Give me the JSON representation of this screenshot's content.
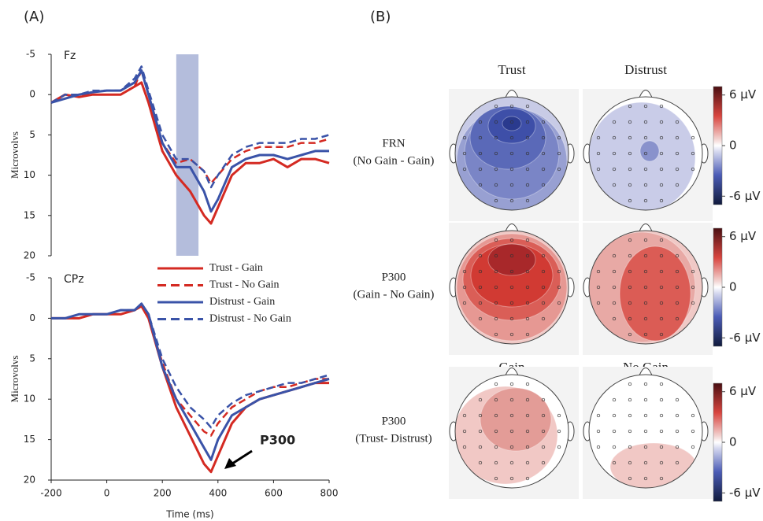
{
  "panel_labels": {
    "a": "(A)",
    "b": "(B)"
  },
  "chart_data": [
    {
      "type": "line",
      "annotation": "Fz",
      "y_label": "Microvolvs",
      "x": [
        -200,
        -150,
        -100,
        -50,
        0,
        50,
        100,
        125,
        150,
        200,
        250,
        300,
        350,
        375,
        400,
        450,
        500,
        550,
        600,
        650,
        700,
        750,
        800
      ],
      "xlim": [
        -200,
        800
      ],
      "ylim": [
        -5,
        20
      ],
      "y_inverted": true,
      "yticks": [
        -5,
        0,
        5,
        10,
        15,
        20
      ],
      "highlight_window": [
        250,
        330
      ],
      "series": [
        {
          "name": "Trust - Gain",
          "color": "#d42a22",
          "dash": false,
          "values": [
            1,
            0,
            0.3,
            0,
            0,
            0,
            -1,
            -1.5,
            1,
            7,
            10,
            12,
            15,
            16,
            14,
            10,
            8.5,
            8.5,
            8,
            9,
            8,
            8,
            8.5
          ]
        },
        {
          "name": "Trust - No Gain",
          "color": "#d42a22",
          "dash": true,
          "values": [
            1,
            0,
            0,
            0,
            0,
            0,
            -1,
            -3,
            0,
            6,
            8.5,
            8,
            9.5,
            11,
            10,
            8,
            7,
            6.5,
            6.5,
            6.5,
            6,
            6,
            5.5
          ]
        },
        {
          "name": "Distrust - Gain",
          "color": "#3a53a8",
          "dash": false,
          "values": [
            1,
            0.5,
            0,
            -0.3,
            -0.5,
            -0.5,
            -1.5,
            -3,
            0,
            6,
            9,
            9,
            12,
            14.5,
            13,
            9,
            8,
            7.5,
            7.5,
            8,
            7.5,
            7,
            7
          ]
        },
        {
          "name": "Distrust - No Gain",
          "color": "#3a53a8",
          "dash": true,
          "values": [
            1,
            0,
            0,
            -0.5,
            -0.5,
            -0.5,
            -2,
            -3.5,
            -0.5,
            5,
            8,
            8,
            9.5,
            11.5,
            10,
            7.5,
            6.5,
            6,
            6,
            6,
            5.5,
            5.5,
            5
          ]
        }
      ]
    },
    {
      "type": "line",
      "annotation": "CPz",
      "y_label": "Microvolvs",
      "x_label": "Time (ms)",
      "peak_label": "P300",
      "x": [
        -200,
        -150,
        -100,
        -50,
        0,
        50,
        100,
        125,
        150,
        200,
        250,
        300,
        350,
        375,
        400,
        450,
        500,
        550,
        600,
        650,
        700,
        750,
        800
      ],
      "xlim": [
        -200,
        800
      ],
      "xticks": [
        -200,
        0,
        200,
        400,
        600,
        800
      ],
      "ylim": [
        -5,
        20
      ],
      "y_inverted": true,
      "yticks": [
        -5,
        0,
        5,
        10,
        15,
        20
      ],
      "series": [
        {
          "name": "Trust - Gain",
          "color": "#d42a22",
          "dash": false,
          "values": [
            0,
            0,
            0,
            -0.5,
            -0.5,
            -0.5,
            -1,
            -1.5,
            0,
            6,
            11,
            14.5,
            18,
            19,
            17,
            13,
            11,
            10,
            9.5,
            9,
            8.5,
            8,
            8
          ]
        },
        {
          "name": "Trust - No Gain",
          "color": "#d42a22",
          "dash": true,
          "values": [
            0,
            0,
            0,
            -0.5,
            -0.5,
            -0.5,
            -1,
            -1.5,
            0,
            5.5,
            10,
            12,
            14,
            14.5,
            13,
            11,
            10,
            9,
            8.5,
            8.5,
            8,
            7.5,
            7.5
          ]
        },
        {
          "name": "Distrust - Gain",
          "color": "#3a53a8",
          "dash": false,
          "values": [
            0,
            0,
            -0.5,
            -0.5,
            -0.5,
            -1,
            -1,
            -1.8,
            -0.5,
            6,
            10,
            13,
            16,
            17.5,
            15,
            12,
            11,
            10,
            9.5,
            9,
            8.5,
            8,
            7.5
          ]
        },
        {
          "name": "Distrust - No Gain",
          "color": "#3a53a8",
          "dash": true,
          "values": [
            0,
            0,
            -0.5,
            -0.5,
            -0.5,
            -1,
            -1,
            -1.8,
            -0.5,
            5,
            8.5,
            11,
            12.5,
            13.5,
            12,
            10.5,
            9.5,
            9,
            8.5,
            8,
            8,
            7.5,
            7
          ]
        }
      ]
    }
  ],
  "topomaps": {
    "columns": [
      "Trust",
      "Distrust"
    ],
    "columns_row3": [
      "Gain",
      "No Gain"
    ],
    "rows": [
      {
        "label": "FRN",
        "sublabel": "(No Gain - Gain)"
      },
      {
        "label": "P300",
        "sublabel": "(Gain - No Gain)"
      },
      {
        "label": "P300",
        "sublabel": "(Trust- Distrust)"
      }
    ],
    "colorbar_ticks": [
      {
        "value": 6,
        "label": "6 µV"
      },
      {
        "value": 0,
        "label": "0"
      },
      {
        "value": -6,
        "label": "-6 µV"
      }
    ],
    "colorbar_lim": [
      -7,
      7
    ]
  }
}
